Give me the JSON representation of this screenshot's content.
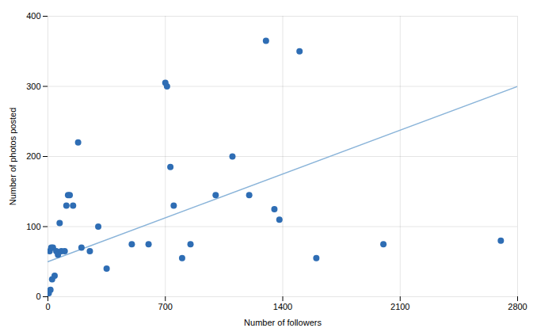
{
  "chart_data": {
    "type": "scatter",
    "title": "",
    "xlabel": "Number of followers",
    "ylabel": "Number of photos posted",
    "series": [
      {
        "type": "line",
        "color": "#8ab4d9",
        "x": [
          0,
          2800
        ],
        "values": [
          50,
          300
        ]
      },
      {
        "type": "scatter",
        "color": "#2e6db4",
        "x": [
          5,
          10,
          15,
          20,
          25,
          30,
          40,
          50,
          60,
          70,
          80,
          100,
          110,
          120,
          130,
          150,
          180,
          200,
          250,
          300,
          350,
          500,
          600,
          700,
          710,
          730,
          750,
          800,
          850,
          1000,
          1100,
          1200,
          1300,
          1350,
          1380,
          1500,
          1600,
          2000,
          2700
        ],
        "values": [
          5,
          65,
          10,
          70,
          25,
          70,
          30,
          65,
          60,
          105,
          65,
          65,
          130,
          145,
          145,
          130,
          220,
          70,
          65,
          100,
          40,
          75,
          75,
          305,
          300,
          185,
          130,
          55,
          75,
          145,
          200,
          145,
          365,
          125,
          110,
          350,
          55,
          75,
          80
        ]
      }
    ],
    "xlim": [
      0,
      2800
    ],
    "ylim": [
      0,
      400
    ],
    "xticks": [
      0,
      700,
      1400,
      2100,
      2800
    ],
    "yticks": [
      0,
      100,
      200,
      300,
      400
    ],
    "grid": true
  }
}
